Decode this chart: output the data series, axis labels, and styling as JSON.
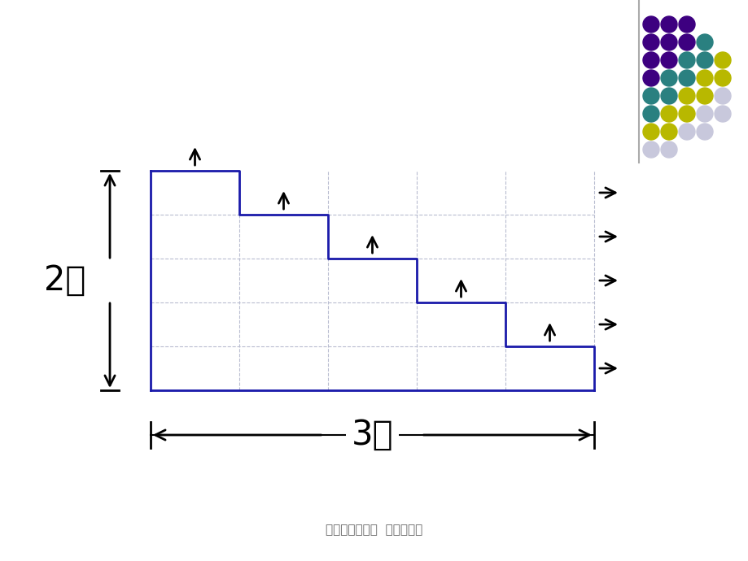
{
  "background_color": "#ffffff",
  "shape_color": "#1a1aaa",
  "grid_color": "#b8bcd0",
  "arrow_color": "#000000",
  "text_color": "#000000",
  "label_2m": "2米",
  "label_3m": "3米",
  "footer_text": "小学数学奥数题  周长、面积",
  "n_steps": 5,
  "dots_colors": [
    [
      "#3d0080",
      "#3d0080",
      "#3d0080"
    ],
    [
      "#3d0080",
      "#3d0080",
      "#3d0080",
      "#2a8080"
    ],
    [
      "#3d0080",
      "#3d0080",
      "#2a8080",
      "#2a8080",
      "#b8b800"
    ],
    [
      "#3d0080",
      "#2a8080",
      "#2a8080",
      "#b8b800",
      "#b8b800"
    ],
    [
      "#2a8080",
      "#2a8080",
      "#b8b800",
      "#b8b800",
      "#c8c8dc"
    ],
    [
      "#2a8080",
      "#b8b800",
      "#b8b800",
      "#c8c8dc",
      "#c8c8dc"
    ],
    [
      "#b8b800",
      "#b8b800",
      "#c8c8dc",
      "#c8c8dc"
    ],
    [
      "#c8c8dc",
      "#c8c8dc"
    ]
  ]
}
